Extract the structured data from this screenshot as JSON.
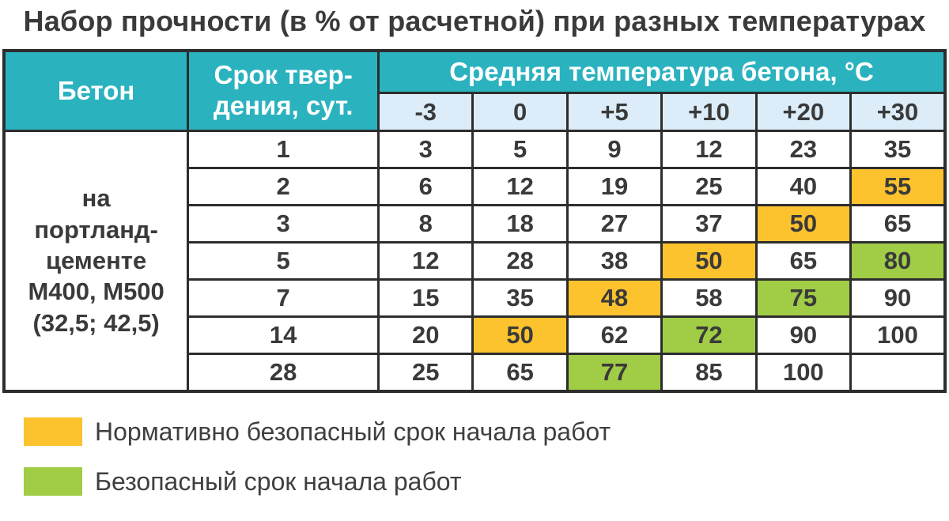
{
  "title": "Набор прочности (в % от расчетной) при разных температурах",
  "colors": {
    "header_teal": "#2bb2bf",
    "subheader_blue": "#dcedf9",
    "highlight_yellow": "#fcc32e",
    "highlight_green": "#a0cc46",
    "border_dark": "#2d2d2d",
    "text_dark": "#3a3a3a"
  },
  "table": {
    "concrete_header": "Бетон",
    "age_header_lines": [
      "Срок твер-",
      "дения, сут."
    ],
    "temp_group_header": "Средняя температура бетона, °С",
    "temp_headers": [
      "-3",
      "0",
      "+5",
      "+10",
      "+20",
      "+30"
    ],
    "row_label_lines": [
      "на",
      "портланд-",
      "цементе",
      "М400, М500",
      "(32,5; 42,5)"
    ],
    "rows": [
      {
        "days": "1",
        "cells": [
          {
            "text": "3"
          },
          {
            "text": "5"
          },
          {
            "text": "9"
          },
          {
            "text": "12"
          },
          {
            "text": "23"
          },
          {
            "text": "35"
          }
        ]
      },
      {
        "days": "2",
        "cells": [
          {
            "text": "6"
          },
          {
            "text": "12"
          },
          {
            "text": "19"
          },
          {
            "text": "25"
          },
          {
            "text": "40"
          },
          {
            "text": "55",
            "hl": "yellow"
          }
        ]
      },
      {
        "days": "3",
        "cells": [
          {
            "text": "8"
          },
          {
            "text": "18"
          },
          {
            "text": "27"
          },
          {
            "text": "37"
          },
          {
            "text": "50",
            "hl": "yellow"
          },
          {
            "text": "65"
          }
        ]
      },
      {
        "days": "5",
        "cells": [
          {
            "text": "12"
          },
          {
            "text": "28"
          },
          {
            "text": "38"
          },
          {
            "text": "50",
            "hl": "yellow"
          },
          {
            "text": "65"
          },
          {
            "text": "80",
            "hl": "green"
          }
        ]
      },
      {
        "days": "7",
        "cells": [
          {
            "text": "15"
          },
          {
            "text": "35"
          },
          {
            "text": "48",
            "hl": "yellow"
          },
          {
            "text": "58"
          },
          {
            "text": "75",
            "hl": "green"
          },
          {
            "text": "90"
          }
        ]
      },
      {
        "days": "14",
        "cells": [
          {
            "text": "20"
          },
          {
            "text": "50",
            "hl": "yellow"
          },
          {
            "text": "62"
          },
          {
            "text": "72",
            "hl": "green"
          },
          {
            "text": "90"
          },
          {
            "text": "100"
          }
        ]
      },
      {
        "days": "28",
        "cells": [
          {
            "text": "25"
          },
          {
            "text": "65"
          },
          {
            "text": "77",
            "hl": "green"
          },
          {
            "text": "85"
          },
          {
            "text": "100"
          },
          {
            "text": ""
          }
        ]
      }
    ]
  },
  "legend": [
    {
      "swatch": "yellow",
      "label": "Нормативно безопасный срок начала работ"
    },
    {
      "swatch": "green",
      "label": "Безопасный срок начала работ"
    }
  ],
  "chart_data": {
    "type": "table",
    "title": "Набор прочности (в % от расчетной) при разных температурах",
    "column_group": "Средняя температура бетона, °С",
    "columns": [
      "-3",
      "0",
      "+5",
      "+10",
      "+20",
      "+30"
    ],
    "row_axis": "Срок твердения, сут.",
    "row_group_label": "на портланд-цементе М400, М500 (32,5; 42,5)",
    "rows": [
      {
        "days": 1,
        "values": [
          3,
          5,
          9,
          12,
          23,
          35
        ]
      },
      {
        "days": 2,
        "values": [
          6,
          12,
          19,
          25,
          40,
          55
        ]
      },
      {
        "days": 3,
        "values": [
          8,
          18,
          27,
          37,
          50,
          65
        ]
      },
      {
        "days": 5,
        "values": [
          12,
          28,
          38,
          50,
          65,
          80
        ]
      },
      {
        "days": 7,
        "values": [
          15,
          35,
          48,
          58,
          75,
          90
        ]
      },
      {
        "days": 14,
        "values": [
          20,
          50,
          62,
          72,
          90,
          100
        ]
      },
      {
        "days": 28,
        "values": [
          25,
          65,
          77,
          85,
          100,
          null
        ]
      }
    ],
    "highlights_yellow": [
      {
        "days": 2,
        "temp": "+30"
      },
      {
        "days": 3,
        "temp": "+20"
      },
      {
        "days": 5,
        "temp": "+10"
      },
      {
        "days": 7,
        "temp": "+5"
      },
      {
        "days": 14,
        "temp": "0"
      }
    ],
    "highlights_green": [
      {
        "days": 5,
        "temp": "+30"
      },
      {
        "days": 7,
        "temp": "+20"
      },
      {
        "days": 14,
        "temp": "+10"
      },
      {
        "days": 28,
        "temp": "+5"
      }
    ],
    "legend": [
      "Нормативно безопасный срок начала работ",
      "Безопасный срок начала работ"
    ]
  }
}
